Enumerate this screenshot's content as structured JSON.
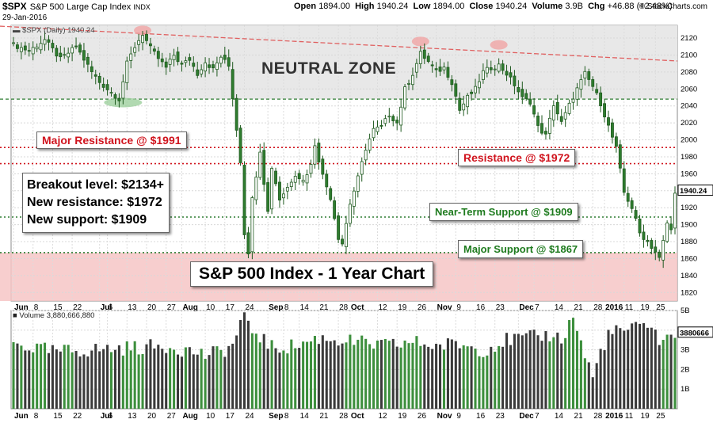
{
  "header": {
    "symbol": "$SPX",
    "name": "S&P 500 Large Cap Index",
    "exchange": "INDX",
    "date": "29-Jan-2016",
    "open_label": "Open",
    "open": "1894.00",
    "high_label": "High",
    "high": "1940.24",
    "low_label": "Low",
    "low": "1894.00",
    "close_label": "Close",
    "close": "1940.24",
    "volume_label": "Volume",
    "volume": "3.9B",
    "chg_label": "Chg",
    "chg": "+46.88 (+2.48%)",
    "brand": "© StockCharts.com"
  },
  "legend": {
    "price": "$SPX (Daily) 1940.24",
    "volume": "Volume 3,880,666,880"
  },
  "annotations": {
    "neutral_zone": "NEUTRAL ZONE",
    "major_resistance": "Major Resistance @ $1991",
    "resistance": "Resistance @ $1972",
    "near_term_support": "Near-Term Support @ $1909",
    "major_support": "Major Support @ $1867",
    "note_line1": "Breakout level: $2134+",
    "note_line2": "New resistance: $1972",
    "note_line3": "New support: $1909",
    "chart_title": "S&P 500 Index - 1 Year Chart"
  },
  "colors": {
    "up": "#2f7d2f",
    "down": "#1f5a1f",
    "volume_up": "#3d8f3d",
    "volume_down": "#3a3a3a",
    "resistance_line": "#d0141e",
    "support_line": "#2e7d32",
    "trend_line": "#e06060",
    "neutral_zone_fill": "#e8e8e8",
    "support_zone_fill": "#f6c6c6"
  },
  "chart_data": {
    "type": "candlestick",
    "symbol": "$SPX",
    "period": "Daily",
    "price_axis": {
      "ylim": [
        1810,
        2135
      ],
      "ticks": [
        1820,
        1840,
        1860,
        1880,
        1900,
        1920,
        1940,
        1960,
        1980,
        2000,
        2020,
        2040,
        2060,
        2080,
        2100,
        2120
      ],
      "last_value_label": "1940.24"
    },
    "volume_axis": {
      "ylim": [
        0,
        5000000000
      ],
      "ticks": [
        {
          "value": 1000000000,
          "label": "1B"
        },
        {
          "value": 2000000000,
          "label": "2B"
        },
        {
          "value": 3000000000,
          "label": "3B"
        },
        {
          "value": 4000000000,
          "label": "4B"
        },
        {
          "value": 5000000000,
          "label": "5B"
        }
      ],
      "last_value_label": "3880666"
    },
    "x_axis_labels": [
      {
        "label": "Jun",
        "bold": true,
        "index": 0
      },
      {
        "label": "8",
        "bold": false,
        "index": 5
      },
      {
        "label": "15",
        "bold": false,
        "index": 10
      },
      {
        "label": "22",
        "bold": false,
        "index": 15
      },
      {
        "label": "Jul",
        "bold": true,
        "index": 22
      },
      {
        "label": "6",
        "bold": false,
        "index": 24
      },
      {
        "label": "13",
        "bold": false,
        "index": 29
      },
      {
        "label": "20",
        "bold": false,
        "index": 34
      },
      {
        "label": "27",
        "bold": false,
        "index": 39
      },
      {
        "label": "Aug",
        "bold": true,
        "index": 43
      },
      {
        "label": "10",
        "bold": false,
        "index": 49
      },
      {
        "label": "17",
        "bold": false,
        "index": 54
      },
      {
        "label": "24",
        "bold": false,
        "index": 59
      },
      {
        "label": "Sep",
        "bold": true,
        "index": 65
      },
      {
        "label": "8",
        "bold": false,
        "index": 69
      },
      {
        "label": "14",
        "bold": false,
        "index": 73
      },
      {
        "label": "21",
        "bold": false,
        "index": 78
      },
      {
        "label": "28",
        "bold": false,
        "index": 83
      },
      {
        "label": "Oct",
        "bold": true,
        "index": 86
      },
      {
        "label": "12",
        "bold": false,
        "index": 93
      },
      {
        "label": "19",
        "bold": false,
        "index": 98
      },
      {
        "label": "26",
        "bold": false,
        "index": 103
      },
      {
        "label": "Nov",
        "bold": true,
        "index": 108
      },
      {
        "label": "9",
        "bold": false,
        "index": 113
      },
      {
        "label": "16",
        "bold": false,
        "index": 118
      },
      {
        "label": "23",
        "bold": false,
        "index": 123
      },
      {
        "label": "Dec",
        "bold": true,
        "index": 129
      },
      {
        "label": "7",
        "bold": false,
        "index": 133
      },
      {
        "label": "14",
        "bold": false,
        "index": 138
      },
      {
        "label": "21",
        "bold": false,
        "index": 143
      },
      {
        "label": "28",
        "bold": false,
        "index": 148
      },
      {
        "label": "2016",
        "bold": true,
        "index": 151
      },
      {
        "label": "11",
        "bold": false,
        "index": 156
      },
      {
        "label": "19",
        "bold": false,
        "index": 160
      },
      {
        "label": "25",
        "bold": false,
        "index": 164
      }
    ],
    "levels": [
      {
        "name": "Neutral zone top",
        "value": 2134,
        "style": "shade-top"
      },
      {
        "name": "Neutral zone bottom",
        "value": 2048,
        "style": "green-dashed"
      },
      {
        "name": "Major Resistance",
        "value": 1991,
        "style": "red-dotted"
      },
      {
        "name": "Resistance",
        "value": 1972,
        "style": "red-dotted"
      },
      {
        "name": "Near-Term Support",
        "value": 1909,
        "style": "green-dotted"
      },
      {
        "name": "Major Support",
        "value": 1867,
        "style": "green-dotted"
      }
    ],
    "support_zone": [
      1810,
      1867
    ],
    "trendline": {
      "from": {
        "index": 0,
        "value": 2134
      },
      "to": {
        "index": 169,
        "value": 2093
      }
    },
    "pivots": [
      {
        "index": 33,
        "value": 2129
      },
      {
        "index": 104,
        "value": 2116
      },
      {
        "index": 124,
        "value": 2112
      }
    ],
    "low_marker": {
      "index": 28,
      "value": 2044
    },
    "close_path": [
      [
        0,
        2112
      ],
      [
        4,
        2105
      ],
      [
        8,
        2118
      ],
      [
        12,
        2095
      ],
      [
        16,
        2110
      ],
      [
        20,
        2080
      ],
      [
        22,
        2068
      ],
      [
        24,
        2060
      ],
      [
        27,
        2048
      ],
      [
        29,
        2090
      ],
      [
        31,
        2110
      ],
      [
        33,
        2125
      ],
      [
        35,
        2108
      ],
      [
        37,
        2096
      ],
      [
        39,
        2085
      ],
      [
        41,
        2100
      ],
      [
        43,
        2088
      ],
      [
        45,
        2095
      ],
      [
        47,
        2078
      ],
      [
        49,
        2092
      ],
      [
        51,
        2083
      ],
      [
        53,
        2098
      ],
      [
        55,
        2087
      ],
      [
        56,
        2050
      ],
      [
        58,
        1975
      ],
      [
        59,
        1890
      ],
      [
        60,
        1868
      ],
      [
        61,
        1930
      ],
      [
        63,
        1988
      ],
      [
        64,
        1950
      ],
      [
        65,
        1915
      ],
      [
        66,
        1968
      ],
      [
        68,
        1930
      ],
      [
        70,
        1944
      ],
      [
        72,
        1960
      ],
      [
        74,
        1952
      ],
      [
        76,
        1970
      ],
      [
        77,
        1995
      ],
      [
        79,
        1958
      ],
      [
        81,
        1932
      ],
      [
        83,
        1885
      ],
      [
        84,
        1878
      ],
      [
        86,
        1925
      ],
      [
        88,
        1955
      ],
      [
        90,
        1990
      ],
      [
        92,
        2012
      ],
      [
        94,
        2015
      ],
      [
        96,
        2030
      ],
      [
        98,
        2020
      ],
      [
        100,
        2060
      ],
      [
        102,
        2078
      ],
      [
        104,
        2102
      ],
      [
        106,
        2092
      ],
      [
        108,
        2080
      ],
      [
        110,
        2085
      ],
      [
        112,
        2068
      ],
      [
        114,
        2035
      ],
      [
        116,
        2050
      ],
      [
        118,
        2060
      ],
      [
        120,
        2080
      ],
      [
        122,
        2085
      ],
      [
        124,
        2088
      ],
      [
        126,
        2078
      ],
      [
        128,
        2065
      ],
      [
        130,
        2049
      ],
      [
        132,
        2045
      ],
      [
        134,
        2015
      ],
      [
        136,
        2005
      ],
      [
        138,
        2042
      ],
      [
        140,
        2020
      ],
      [
        142,
        2041
      ],
      [
        144,
        2060
      ],
      [
        146,
        2078
      ],
      [
        148,
        2063
      ],
      [
        150,
        2043
      ],
      [
        152,
        2016
      ],
      [
        154,
        1990
      ],
      [
        156,
        1938
      ],
      [
        158,
        1920
      ],
      [
        160,
        1890
      ],
      [
        162,
        1880
      ],
      [
        164,
        1868
      ],
      [
        165,
        1860
      ],
      [
        166,
        1880
      ],
      [
        167,
        1902
      ],
      [
        168,
        1893
      ],
      [
        169,
        1940
      ]
    ],
    "volume_path_billions": [
      [
        0,
        3.3
      ],
      [
        10,
        2.9
      ],
      [
        20,
        3.0
      ],
      [
        30,
        3.1
      ],
      [
        40,
        3.2
      ],
      [
        50,
        2.7
      ],
      [
        56,
        3.2
      ],
      [
        58,
        4.4
      ],
      [
        59,
        4.6
      ],
      [
        60,
        4.1
      ],
      [
        62,
        3.9
      ],
      [
        66,
        3.1
      ],
      [
        72,
        3.2
      ],
      [
        78,
        3.6
      ],
      [
        84,
        3.5
      ],
      [
        90,
        3.3
      ],
      [
        96,
        3.2
      ],
      [
        102,
        3.4
      ],
      [
        108,
        3.2
      ],
      [
        114,
        3.3
      ],
      [
        120,
        3.0
      ],
      [
        126,
        3.5
      ],
      [
        132,
        3.6
      ],
      [
        138,
        3.8
      ],
      [
        140,
        3.5
      ],
      [
        143,
        4.7
      ],
      [
        146,
        2.7
      ],
      [
        148,
        1.6
      ],
      [
        150,
        2.9
      ],
      [
        152,
        3.8
      ],
      [
        156,
        4.0
      ],
      [
        160,
        4.1
      ],
      [
        163,
        4.4
      ],
      [
        165,
        3.4
      ],
      [
        167,
        3.5
      ],
      [
        169,
        3.9
      ]
    ],
    "bars": 170
  }
}
